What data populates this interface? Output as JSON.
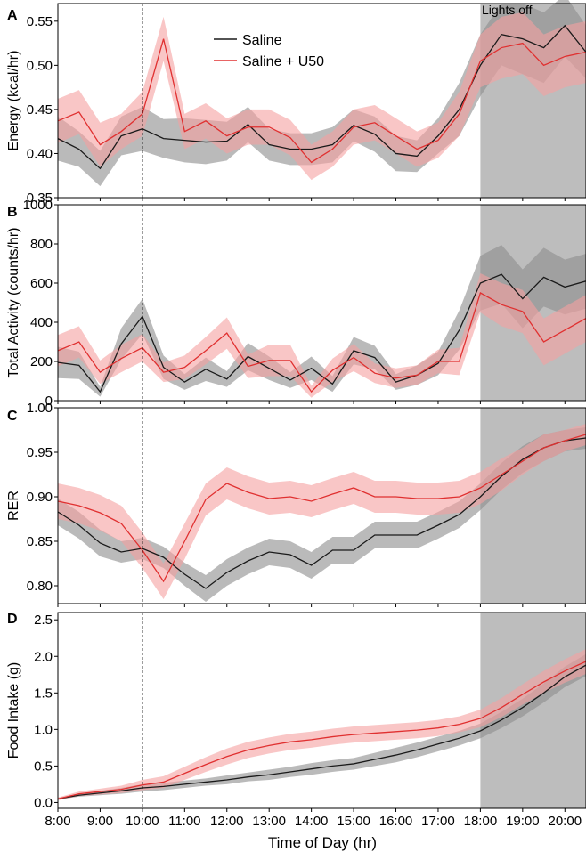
{
  "figure": {
    "xlabel": "Time of Day (hr)",
    "x_tick_labels": [
      "8:00",
      "9:00",
      "10:00",
      "11:00",
      "12:00",
      "13:00",
      "14:00",
      "15:00",
      "16:00",
      "17:00",
      "18:00",
      "19:00",
      "20:00"
    ],
    "x_tick_values": [
      8,
      9,
      10,
      11,
      12,
      13,
      14,
      15,
      16,
      17,
      18,
      19,
      20
    ],
    "xlim": [
      8,
      20.5
    ],
    "dashed_vline_x": 10,
    "lights_off": {
      "label": "Lights off",
      "from": 18,
      "to": 20.5
    },
    "legend": {
      "placement": "top-center",
      "entries": [
        "Saline",
        "Saline + U50"
      ]
    },
    "colors": {
      "saline": "#1a1a1a",
      "saline_band": "#8c8c8c",
      "u50": "#e03030",
      "u50_band": "#f5a0a0",
      "lights_shade": "#bdbdbd"
    }
  },
  "chart_data": [
    {
      "type": "line",
      "panel": "A",
      "ylabel": "Energy (kcal/hr)",
      "ylim": [
        0.35,
        0.57
      ],
      "y_ticks": [
        0.35,
        0.4,
        0.45,
        0.5,
        0.55
      ],
      "y_tick_labels": [
        "0.35",
        "0.40",
        "0.45",
        "0.50",
        "0.55"
      ],
      "x": [
        8,
        8.5,
        9,
        9.5,
        10,
        10.5,
        11,
        11.5,
        12,
        12.5,
        13,
        13.5,
        14,
        14.5,
        15,
        15.5,
        16,
        16.5,
        17,
        17.5,
        18,
        18.5,
        19,
        19.5,
        20,
        20.5
      ],
      "series": [
        {
          "name": "Saline",
          "values": [
            0.417,
            0.405,
            0.383,
            0.42,
            0.428,
            0.417,
            0.415,
            0.413,
            0.414,
            0.433,
            0.41,
            0.405,
            0.405,
            0.41,
            0.432,
            0.422,
            0.4,
            0.397,
            0.42,
            0.45,
            0.5,
            0.535,
            0.53,
            0.52,
            0.545,
            0.515
          ],
          "error": [
            0.025,
            0.02,
            0.02,
            0.022,
            0.025,
            0.022,
            0.025,
            0.025,
            0.022,
            0.02,
            0.018,
            0.018,
            0.018,
            0.02,
            0.018,
            0.02,
            0.02,
            0.018,
            0.02,
            0.03,
            0.035,
            0.035,
            0.04,
            0.04,
            0.035,
            0.03
          ]
        },
        {
          "name": "Saline + U50",
          "values": [
            0.437,
            0.447,
            0.41,
            0.425,
            0.445,
            0.53,
            0.425,
            0.437,
            0.42,
            0.43,
            0.43,
            0.418,
            0.39,
            0.405,
            0.43,
            0.435,
            0.42,
            0.405,
            0.415,
            0.445,
            0.505,
            0.52,
            0.525,
            0.5,
            0.51,
            0.515
          ],
          "error": [
            0.025,
            0.025,
            0.025,
            0.02,
            0.025,
            0.025,
            0.02,
            0.02,
            0.02,
            0.02,
            0.02,
            0.02,
            0.02,
            0.02,
            0.02,
            0.02,
            0.02,
            0.02,
            0.02,
            0.025,
            0.03,
            0.035,
            0.035,
            0.035,
            0.035,
            0.035
          ]
        }
      ]
    },
    {
      "type": "line",
      "panel": "B",
      "ylabel": "Total Activity (counts/hr)",
      "ylim": [
        0,
        1000
      ],
      "y_ticks": [
        0,
        200,
        400,
        600,
        800,
        1000
      ],
      "y_tick_labels": [
        "0",
        "200",
        "400",
        "600",
        "800",
        "1000"
      ],
      "x": [
        8,
        8.5,
        9,
        9.5,
        10,
        10.5,
        11,
        11.5,
        12,
        12.5,
        13,
        13.5,
        14,
        14.5,
        15,
        15.5,
        16,
        16.5,
        17,
        17.5,
        18,
        18.5,
        19,
        19.5,
        20,
        20.5
      ],
      "series": [
        {
          "name": "Saline",
          "values": [
            195,
            180,
            45,
            290,
            430,
            170,
            95,
            160,
            110,
            225,
            165,
            105,
            165,
            85,
            255,
            220,
            95,
            130,
            190,
            360,
            600,
            645,
            520,
            630,
            580,
            610
          ],
          "error": [
            80,
            70,
            25,
            80,
            90,
            60,
            40,
            60,
            40,
            70,
            60,
            40,
            60,
            40,
            70,
            60,
            40,
            50,
            60,
            100,
            140,
            150,
            150,
            150,
            140,
            140
          ]
        },
        {
          "name": "Saline + U50",
          "values": [
            255,
            300,
            145,
            215,
            270,
            145,
            170,
            255,
            345,
            175,
            205,
            205,
            45,
            155,
            220,
            140,
            115,
            130,
            200,
            200,
            550,
            490,
            455,
            300,
            360,
            420
          ],
          "error": [
            80,
            80,
            60,
            70,
            70,
            50,
            60,
            70,
            80,
            60,
            80,
            80,
            30,
            60,
            70,
            50,
            50,
            50,
            60,
            70,
            100,
            110,
            110,
            120,
            120,
            120
          ]
        }
      ]
    },
    {
      "type": "line",
      "panel": "C",
      "ylabel": "RER",
      "ylim": [
        0.78,
        1.0
      ],
      "y_ticks": [
        0.8,
        0.85,
        0.9,
        0.95,
        1.0
      ],
      "y_tick_labels": [
        "0.80",
        "0.85",
        "0.90",
        "0.95",
        "1.00"
      ],
      "x": [
        8,
        8.5,
        9,
        9.5,
        10,
        10.5,
        11,
        11.5,
        12,
        12.5,
        13,
        13.5,
        14,
        14.5,
        15,
        15.5,
        16,
        16.5,
        17,
        17.5,
        18,
        18.5,
        19,
        19.5,
        20,
        20.5
      ],
      "series": [
        {
          "name": "Saline",
          "values": [
            0.883,
            0.868,
            0.848,
            0.838,
            0.842,
            0.832,
            0.813,
            0.797,
            0.815,
            0.828,
            0.838,
            0.835,
            0.823,
            0.84,
            0.84,
            0.857,
            0.857,
            0.857,
            0.868,
            0.88,
            0.9,
            0.923,
            0.942,
            0.955,
            0.963,
            0.966
          ],
          "error": [
            0.015,
            0.015,
            0.015,
            0.012,
            0.012,
            0.012,
            0.013,
            0.015,
            0.015,
            0.015,
            0.015,
            0.015,
            0.015,
            0.015,
            0.015,
            0.015,
            0.015,
            0.015,
            0.015,
            0.015,
            0.015,
            0.015,
            0.015,
            0.015,
            0.012,
            0.012
          ]
        },
        {
          "name": "Saline + U50",
          "values": [
            0.895,
            0.89,
            0.882,
            0.87,
            0.84,
            0.805,
            0.85,
            0.897,
            0.915,
            0.905,
            0.898,
            0.9,
            0.895,
            0.903,
            0.91,
            0.9,
            0.9,
            0.898,
            0.898,
            0.9,
            0.91,
            0.925,
            0.94,
            0.955,
            0.963,
            0.97
          ],
          "error": [
            0.02,
            0.02,
            0.02,
            0.02,
            0.02,
            0.02,
            0.02,
            0.018,
            0.018,
            0.018,
            0.018,
            0.018,
            0.018,
            0.018,
            0.018,
            0.018,
            0.018,
            0.018,
            0.018,
            0.018,
            0.018,
            0.018,
            0.015,
            0.015,
            0.012,
            0.012
          ]
        }
      ]
    },
    {
      "type": "line",
      "panel": "D",
      "ylabel": "Food Intake (g)",
      "ylim": [
        -0.08,
        2.6
      ],
      "y_ticks": [
        0.0,
        0.5,
        1.0,
        1.5,
        2.0,
        2.5
      ],
      "y_tick_labels": [
        "0.0",
        "0.5",
        "1.0",
        "1.5",
        "2.0",
        "2.5"
      ],
      "x": [
        8,
        8.5,
        9,
        9.5,
        10,
        10.5,
        11,
        11.5,
        12,
        12.5,
        13,
        13.5,
        14,
        14.5,
        15,
        15.5,
        16,
        16.5,
        17,
        17.5,
        18,
        18.5,
        19,
        19.5,
        20,
        20.5
      ],
      "series": [
        {
          "name": "Saline",
          "values": [
            0.05,
            0.1,
            0.13,
            0.16,
            0.2,
            0.22,
            0.25,
            0.28,
            0.31,
            0.35,
            0.38,
            0.42,
            0.46,
            0.5,
            0.53,
            0.59,
            0.65,
            0.72,
            0.8,
            0.88,
            0.98,
            1.13,
            1.3,
            1.5,
            1.72,
            1.88
          ],
          "error": [
            0.01,
            0.02,
            0.03,
            0.04,
            0.05,
            0.05,
            0.05,
            0.05,
            0.06,
            0.06,
            0.07,
            0.07,
            0.08,
            0.08,
            0.08,
            0.09,
            0.1,
            0.1,
            0.1,
            0.1,
            0.1,
            0.11,
            0.12,
            0.13,
            0.14,
            0.15
          ]
        },
        {
          "name": "Saline + U50",
          "values": [
            0.05,
            0.12,
            0.15,
            0.18,
            0.24,
            0.28,
            0.4,
            0.52,
            0.63,
            0.72,
            0.78,
            0.83,
            0.86,
            0.9,
            0.93,
            0.95,
            0.97,
            0.99,
            1.02,
            1.07,
            1.15,
            1.3,
            1.48,
            1.65,
            1.8,
            1.93
          ],
          "error": [
            0.02,
            0.03,
            0.04,
            0.05,
            0.07,
            0.08,
            0.09,
            0.1,
            0.11,
            0.11,
            0.11,
            0.11,
            0.11,
            0.11,
            0.11,
            0.11,
            0.11,
            0.11,
            0.11,
            0.11,
            0.12,
            0.13,
            0.14,
            0.15,
            0.16,
            0.17
          ]
        }
      ]
    }
  ]
}
